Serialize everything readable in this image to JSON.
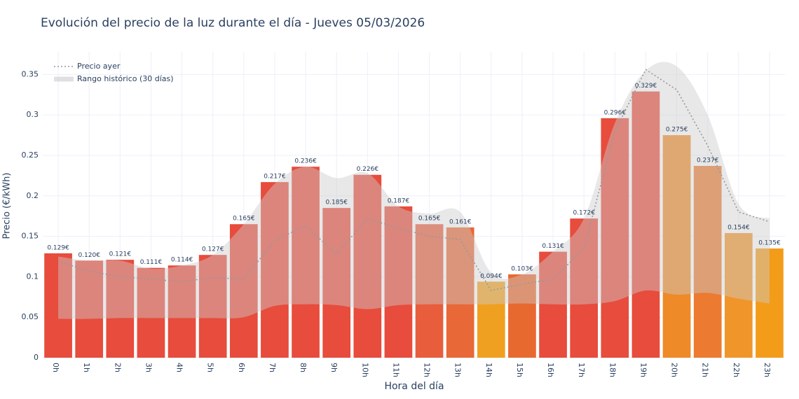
{
  "chart_data": {
    "type": "bar",
    "title": "Evolución del precio de la luz durante el día - Jueves 05/03/2026",
    "x_label": "Hora del día",
    "y_label": "Precio (€/kWh)",
    "categories": [
      "0h",
      "1h",
      "2h",
      "3h",
      "4h",
      "5h",
      "6h",
      "7h",
      "8h",
      "9h",
      "10h",
      "11h",
      "12h",
      "13h",
      "14h",
      "15h",
      "16h",
      "17h",
      "18h",
      "19h",
      "20h",
      "21h",
      "22h",
      "23h"
    ],
    "values": [
      0.129,
      0.12,
      0.121,
      0.111,
      0.114,
      0.127,
      0.165,
      0.217,
      0.236,
      0.185,
      0.226,
      0.187,
      0.165,
      0.161,
      0.094,
      0.103,
      0.131,
      0.172,
      0.296,
      0.329,
      0.275,
      0.237,
      0.154,
      0.135
    ],
    "value_labels": [
      "0.129€",
      "0.120€",
      "0.121€",
      "0.111€",
      "0.114€",
      "0.127€",
      "0.165€",
      "0.217€",
      "0.236€",
      "0.185€",
      "0.226€",
      "0.187€",
      "0.165€",
      "0.161€",
      "0.094€",
      "0.103€",
      "0.131€",
      "0.172€",
      "0.296€",
      "0.329€",
      "0.275€",
      "0.237€",
      "0.154€",
      "0.135€"
    ],
    "colors": [
      "#e74c3c",
      "#e74c3c",
      "#e74c3c",
      "#e74c3c",
      "#e74c3c",
      "#e74c3c",
      "#e74c3c",
      "#e74c3c",
      "#e74c3c",
      "#e74c3c",
      "#e74c3c",
      "#e74c3c",
      "#e85d3c",
      "#e86838",
      "#f0a020",
      "#e8692f",
      "#e74c3c",
      "#e74c3c",
      "#e74c3c",
      "#e74c3c",
      "#ee8a28",
      "#ec7a30",
      "#f0952a",
      "#f39c1a"
    ],
    "yesterday": {
      "name": "Precio ayer",
      "color": "#999999",
      "values": [
        0.119,
        0.107,
        0.1,
        0.097,
        0.094,
        0.099,
        0.097,
        0.145,
        0.163,
        0.128,
        0.172,
        0.16,
        0.15,
        0.146,
        0.083,
        0.091,
        0.097,
        0.135,
        0.28,
        0.356,
        0.331,
        0.262,
        0.18,
        0.168
      ]
    },
    "range": {
      "name": "Rango histórico (30 días)",
      "color": "#cccccc",
      "lower": [
        0.048,
        0.048,
        0.049,
        0.049,
        0.049,
        0.049,
        0.05,
        0.064,
        0.066,
        0.065,
        0.06,
        0.065,
        0.066,
        0.066,
        0.066,
        0.067,
        0.066,
        0.066,
        0.07,
        0.083,
        0.078,
        0.08,
        0.073,
        0.067
      ],
      "upper": [
        0.125,
        0.12,
        0.12,
        0.11,
        0.114,
        0.127,
        0.165,
        0.215,
        0.236,
        0.222,
        0.228,
        0.187,
        0.178,
        0.18,
        0.105,
        0.103,
        0.131,
        0.172,
        0.29,
        0.355,
        0.36,
        0.3,
        0.19,
        0.172
      ]
    },
    "ylim": [
      0,
      0.378
    ],
    "yticks": [
      0,
      0.05,
      0.1,
      0.15,
      0.2,
      0.25,
      0.3,
      0.35
    ],
    "grid": true
  }
}
